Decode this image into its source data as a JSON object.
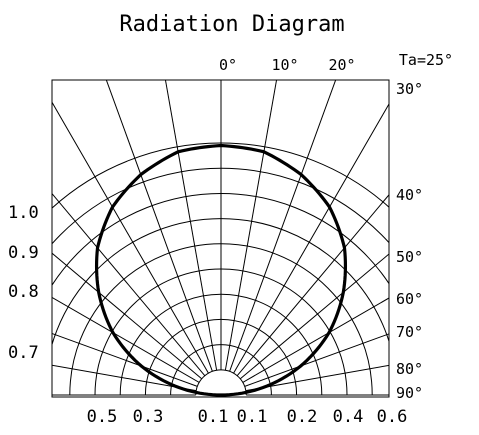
{
  "chart_data": {
    "type": "polar-radiation",
    "title": "Radiation Diagram",
    "condition": "Ta=25°",
    "top_angle_labels": [
      "0°",
      "10°",
      "20°"
    ],
    "right_angle_labels": [
      "30°",
      "40°",
      "50°",
      "60°",
      "70°",
      "80°",
      "90°"
    ],
    "left_intensity_labels": [
      "1.0",
      "0.9",
      "0.8",
      "0.7"
    ],
    "bottom_intensity_labels": [
      "0.5",
      "0.3",
      "0.1",
      "0.1",
      "0.2",
      "0.4",
      "0.6"
    ],
    "ring_values": [
      0.1,
      0.2,
      0.3,
      0.4,
      0.5,
      0.6,
      0.7,
      0.8,
      0.9,
      1.0
    ],
    "spoke_angles_deg": [
      -90,
      -80,
      -70,
      -60,
      -50,
      -40,
      -30,
      -20,
      -10,
      0,
      10,
      20,
      30,
      40,
      50,
      60,
      70,
      80,
      90
    ],
    "series": [
      {
        "angles_deg": [
          0,
          10,
          20,
          30,
          40,
          50,
          60,
          70,
          80,
          90
        ],
        "relative_intensity": [
          1.0,
          0.99,
          0.94,
          0.87,
          0.77,
          0.64,
          0.5,
          0.34,
          0.17,
          0.0
        ]
      }
    ]
  }
}
